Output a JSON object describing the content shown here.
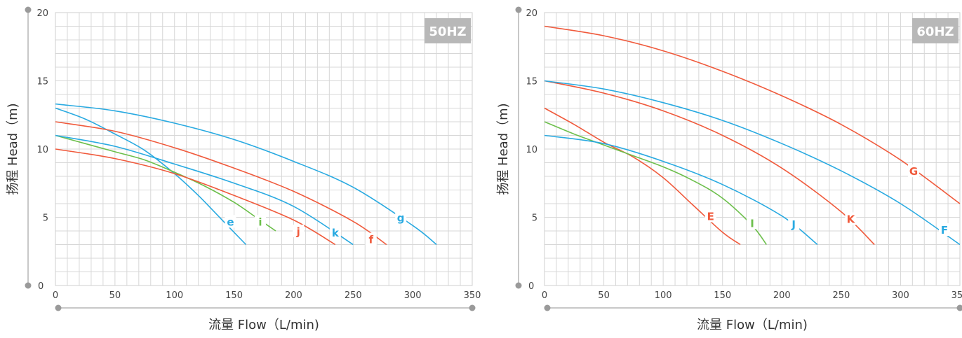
{
  "chart_data": [
    {
      "type": "line",
      "badge": "50HZ",
      "xlabel": "流量 Flow（L/min)",
      "ylabel": "扬程 Head（m)",
      "xlim": [
        0,
        350
      ],
      "ylim": [
        0,
        20
      ],
      "xticks": [
        0,
        50,
        100,
        150,
        200,
        250,
        300,
        350
      ],
      "yticks": [
        5,
        10,
        15,
        20
      ],
      "grid": true,
      "series": [
        {
          "name": "e",
          "color": "#29aae1",
          "label_at": [
            147,
            4.6
          ],
          "points": [
            [
              0,
              13
            ],
            [
              25,
              12.2
            ],
            [
              50,
              11.1
            ],
            [
              75,
              9.9
            ],
            [
              100,
              8.2
            ],
            [
              120,
              6.6
            ],
            [
              140,
              4.8
            ],
            [
              160,
              3
            ]
          ]
        },
        {
          "name": "i",
          "color": "#6cbf4b",
          "label_at": [
            172,
            4.6
          ],
          "points": [
            [
              0,
              11
            ],
            [
              25,
              10.4
            ],
            [
              50,
              9.8
            ],
            [
              75,
              9.2
            ],
            [
              100,
              8.3
            ],
            [
              125,
              7.3
            ],
            [
              150,
              6.1
            ],
            [
              170,
              4.9
            ],
            [
              185,
              4
            ]
          ]
        },
        {
          "name": "j",
          "color": "#f05a3c",
          "label_at": [
            204,
            3.9
          ],
          "points": [
            [
              0,
              10
            ],
            [
              50,
              9.3
            ],
            [
              100,
              8.2
            ],
            [
              150,
              6.6
            ],
            [
              200,
              4.8
            ],
            [
              235,
              3
            ]
          ]
        },
        {
          "name": "k",
          "color": "#29aae1",
          "label_at": [
            235,
            3.8
          ],
          "points": [
            [
              0,
              11
            ],
            [
              50,
              10.2
            ],
            [
              100,
              8.9
            ],
            [
              150,
              7.5
            ],
            [
              200,
              5.8
            ],
            [
              250,
              3
            ]
          ]
        },
        {
          "name": "f",
          "color": "#f05a3c",
          "label_at": [
            265,
            3.3
          ],
          "points": [
            [
              0,
              12
            ],
            [
              50,
              11.3
            ],
            [
              100,
              10.1
            ],
            [
              150,
              8.6
            ],
            [
              200,
              6.9
            ],
            [
              250,
              4.7
            ],
            [
              278,
              3
            ]
          ]
        },
        {
          "name": "g",
          "color": "#29aae1",
          "label_at": [
            290,
            4.9
          ],
          "points": [
            [
              0,
              13.3
            ],
            [
              50,
              12.8
            ],
            [
              100,
              11.9
            ],
            [
              150,
              10.7
            ],
            [
              200,
              9.1
            ],
            [
              250,
              7.2
            ],
            [
              300,
              4.4
            ],
            [
              320,
              3
            ]
          ]
        }
      ]
    },
    {
      "type": "line",
      "badge": "60HZ",
      "xlabel": "流量 Flow（L/min)",
      "ylabel": "扬程 Head（m)",
      "xlim": [
        0,
        350
      ],
      "ylim": [
        0,
        20
      ],
      "xticks": [
        0,
        50,
        100,
        150,
        200,
        250,
        300,
        350
      ],
      "yticks": [
        5,
        10,
        15,
        20
      ],
      "grid": true,
      "series": [
        {
          "name": "E",
          "color": "#f05a3c",
          "label_at": [
            140,
            5
          ],
          "points": [
            [
              0,
              13
            ],
            [
              25,
              11.8
            ],
            [
              50,
              10.5
            ],
            [
              75,
              9.4
            ],
            [
              100,
              7.9
            ],
            [
              125,
              5.9
            ],
            [
              150,
              3.9
            ],
            [
              165,
              3
            ]
          ]
        },
        {
          "name": "I",
          "color": "#6cbf4b",
          "label_at": [
            175,
            4.5
          ],
          "points": [
            [
              0,
              12
            ],
            [
              25,
              11.1
            ],
            [
              50,
              10.3
            ],
            [
              75,
              9.5
            ],
            [
              100,
              8.7
            ],
            [
              125,
              7.7
            ],
            [
              150,
              6.4
            ],
            [
              175,
              4.4
            ],
            [
              187,
              3
            ]
          ]
        },
        {
          "name": "J",
          "color": "#29aae1",
          "label_at": [
            210,
            4.4
          ],
          "points": [
            [
              0,
              11
            ],
            [
              50,
              10.4
            ],
            [
              100,
              9.1
            ],
            [
              150,
              7.4
            ],
            [
              200,
              5.1
            ],
            [
              230,
              3
            ]
          ]
        },
        {
          "name": "K",
          "color": "#f05a3c",
          "label_at": [
            258,
            4.8
          ],
          "points": [
            [
              0,
              15
            ],
            [
              50,
              14.1
            ],
            [
              100,
              12.8
            ],
            [
              150,
              11
            ],
            [
              200,
              8.6
            ],
            [
              250,
              5.4
            ],
            [
              278,
              3
            ]
          ]
        },
        {
          "name": "F",
          "color": "#29aae1",
          "label_at": [
            337,
            4
          ],
          "points": [
            [
              0,
              15
            ],
            [
              50,
              14.4
            ],
            [
              100,
              13.4
            ],
            [
              150,
              12.1
            ],
            [
              200,
              10.4
            ],
            [
              250,
              8.4
            ],
            [
              300,
              6
            ],
            [
              350,
              3
            ]
          ]
        },
        {
          "name": "G",
          "color": "#f05a3c",
          "label_at": [
            311,
            8.3
          ],
          "points": [
            [
              0,
              19
            ],
            [
              50,
              18.3
            ],
            [
              100,
              17.2
            ],
            [
              150,
              15.7
            ],
            [
              200,
              13.9
            ],
            [
              250,
              11.8
            ],
            [
              300,
              9.2
            ],
            [
              350,
              6
            ]
          ]
        }
      ]
    }
  ]
}
